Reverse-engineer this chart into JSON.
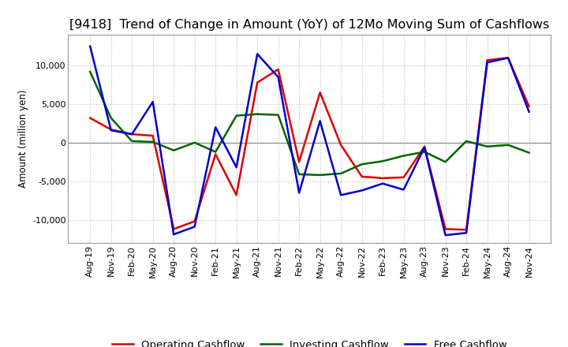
{
  "title": "[9418]  Trend of Change in Amount (YoY) of 12Mo Moving Sum of Cashflows",
  "ylabel": "Amount (million yen)",
  "background_color": "#ffffff",
  "grid_color": "#bbbbbb",
  "x_labels": [
    "Aug-19",
    "Nov-19",
    "Feb-20",
    "May-20",
    "Aug-20",
    "Nov-20",
    "Feb-21",
    "May-21",
    "Aug-21",
    "Nov-21",
    "Feb-22",
    "May-22",
    "Aug-22",
    "Nov-22",
    "Feb-23",
    "May-23",
    "Aug-23",
    "Nov-23",
    "Feb-24",
    "May-24",
    "Aug-24",
    "Nov-24"
  ],
  "operating": [
    3200,
    1700,
    1100,
    900,
    -11200,
    -10200,
    -1500,
    -6800,
    7800,
    9500,
    -2500,
    6500,
    -300,
    -4400,
    -4600,
    -4500,
    -500,
    -11200,
    -11300,
    10700,
    11000,
    4700
  ],
  "investing": [
    9200,
    3200,
    200,
    100,
    -1000,
    0,
    -1200,
    3500,
    3700,
    3600,
    -4100,
    -4200,
    -4000,
    -2800,
    -2400,
    -1700,
    -1200,
    -2500,
    200,
    -500,
    -300,
    -1300
  ],
  "free": [
    12500,
    1600,
    1100,
    5300,
    -11900,
    -10900,
    2000,
    -3200,
    11500,
    8500,
    -6500,
    2800,
    -6800,
    -6200,
    -5300,
    -6100,
    -600,
    -12000,
    -11700,
    10400,
    11000,
    4000
  ],
  "operating_color": "#dd0000",
  "investing_color": "#006600",
  "free_color": "#0000cc",
  "ylim": [
    -13000,
    14000
  ],
  "yticks": [
    -10000,
    -5000,
    0,
    5000,
    10000
  ],
  "title_fontsize": 11.5,
  "axis_fontsize": 8.5,
  "tick_fontsize": 8,
  "legend_fontsize": 9.5,
  "linewidth": 1.8
}
